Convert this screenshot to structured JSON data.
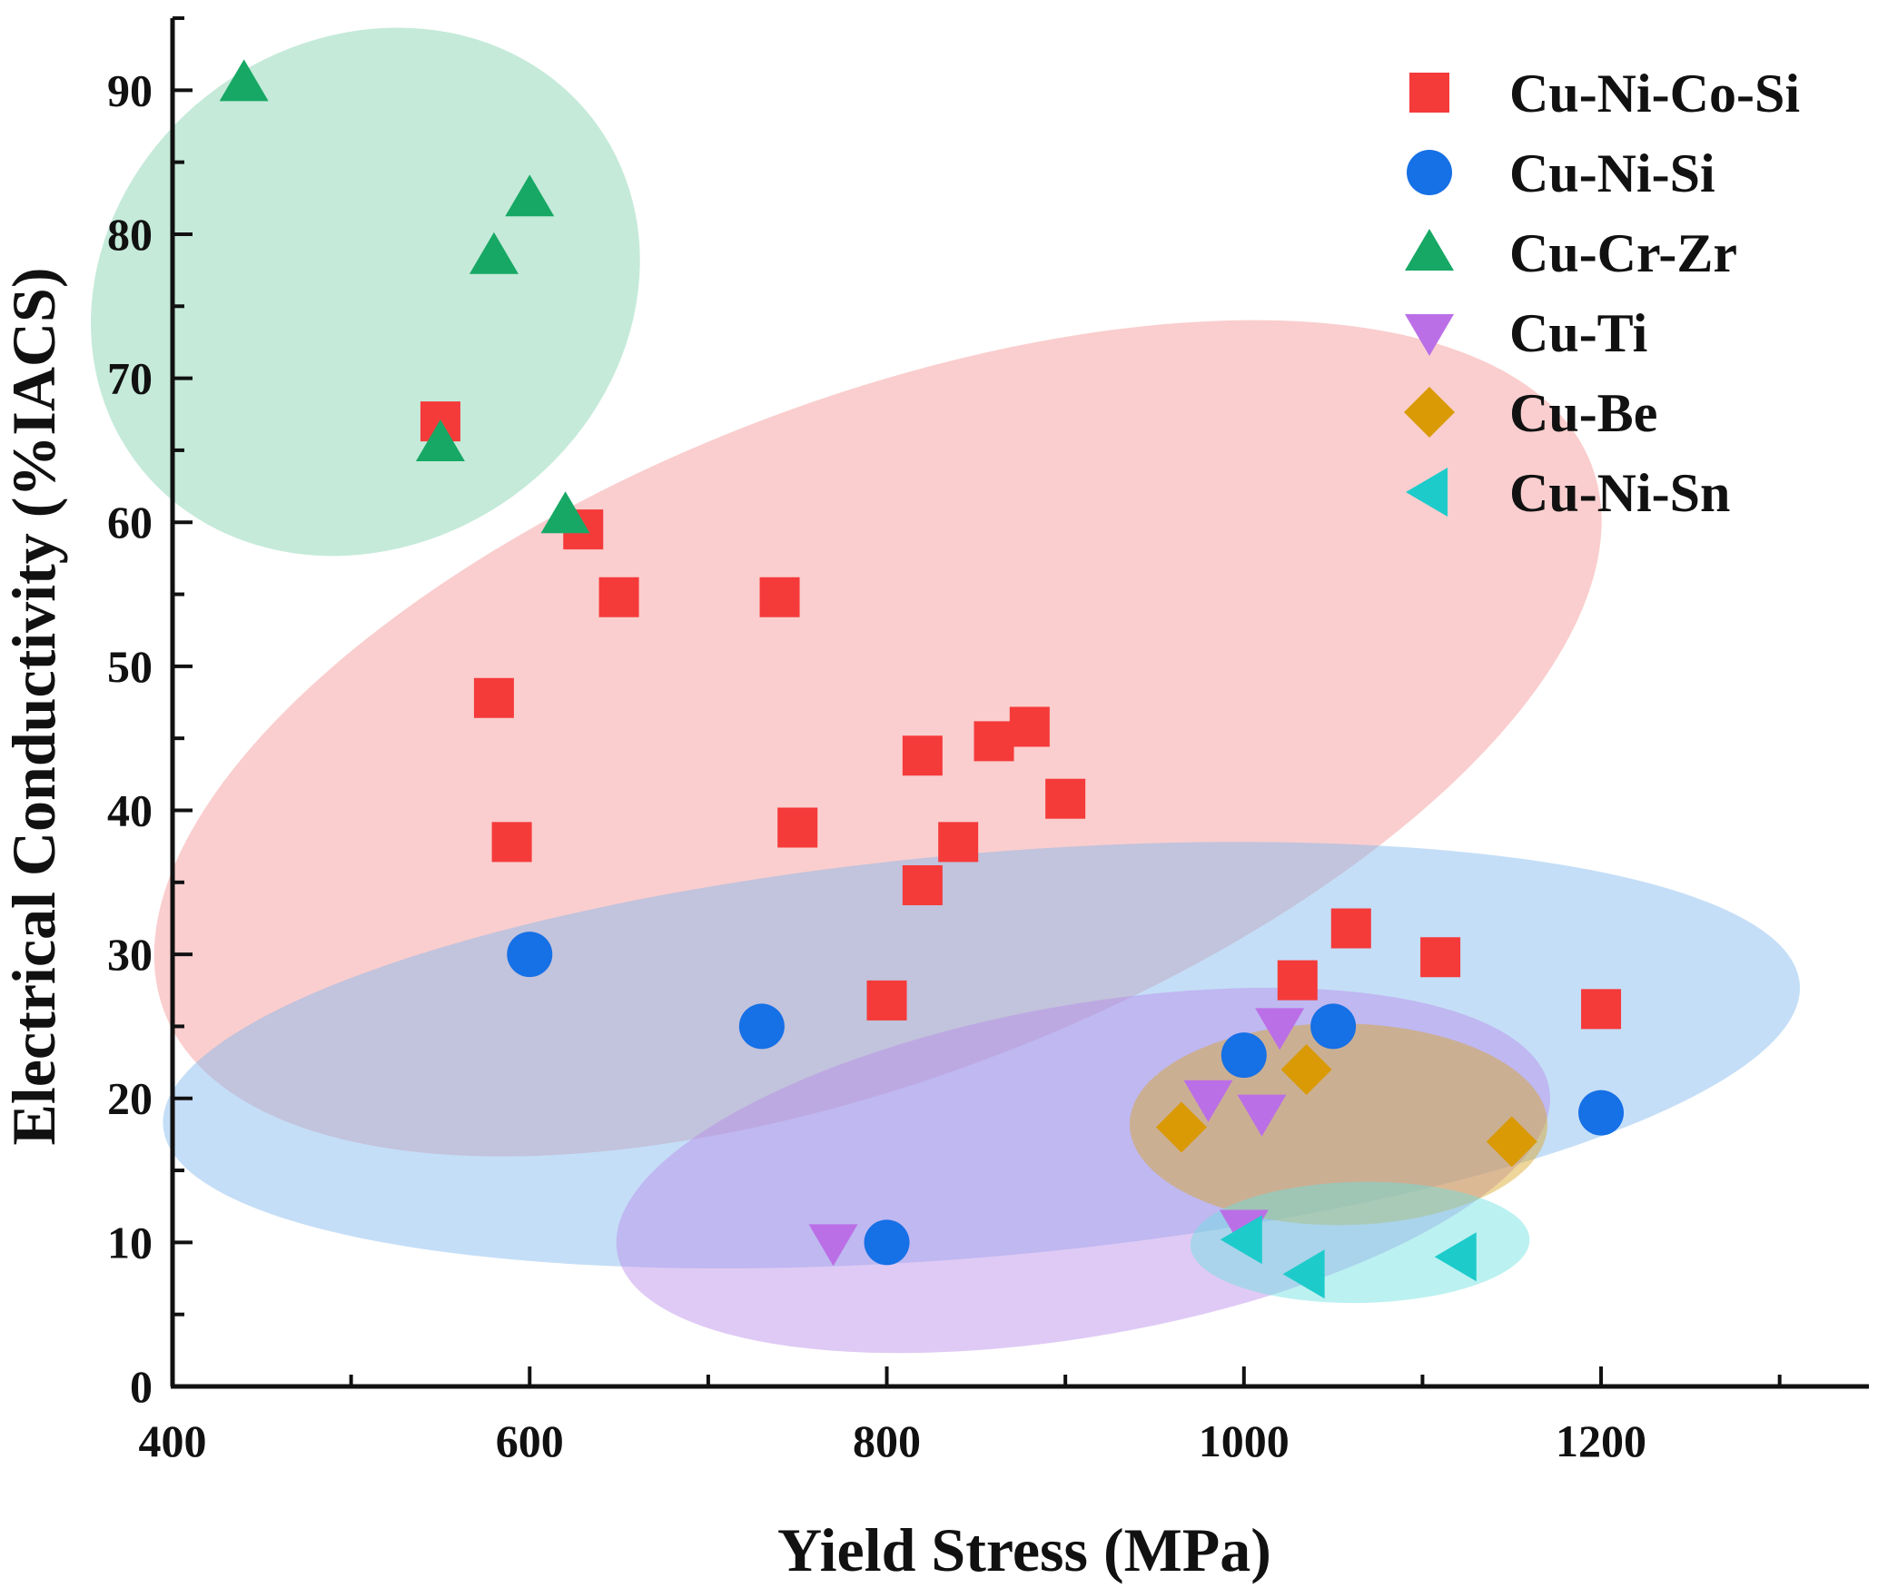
{
  "chart_data": {
    "type": "scatter",
    "title": "",
    "xlabel": "Yield Stress (MPa)",
    "ylabel": "Electrical Conductivity (%IACS)",
    "xlim": [
      400,
      1350
    ],
    "ylim": [
      0,
      95
    ],
    "xticks": [
      400,
      600,
      800,
      1000,
      1200
    ],
    "xtick_labels": [
      "400",
      "600",
      "800",
      "1000",
      "1200"
    ],
    "yticks": [
      0,
      10,
      20,
      30,
      40,
      50,
      60,
      70,
      80,
      90
    ],
    "ytick_labels": [
      "0",
      "10",
      "20",
      "30",
      "40",
      "50",
      "60",
      "70",
      "80",
      "90"
    ],
    "legend_position": "top-right",
    "series": [
      {
        "name": "Cu-Ni-Co-Si",
        "marker": "square",
        "color": "#f53a3a",
        "region_color": "#f59393",
        "region": {
          "cx": 795,
          "cy": 45,
          "rx": 428,
          "ry": 23.5,
          "angle": -21
        },
        "points": [
          [
            550,
            67
          ],
          [
            630,
            59.5
          ],
          [
            650,
            54.8
          ],
          [
            740,
            54.8
          ],
          [
            580,
            47.8
          ],
          [
            590,
            37.8
          ],
          [
            750,
            38.8
          ],
          [
            820,
            43.8
          ],
          [
            860,
            44.8
          ],
          [
            880,
            45.8
          ],
          [
            900,
            40.8
          ],
          [
            840,
            37.8
          ],
          [
            820,
            34.8
          ],
          [
            800,
            26.8
          ],
          [
            1030,
            28.2
          ],
          [
            1060,
            31.8
          ],
          [
            1110,
            29.8
          ],
          [
            1200,
            26.2
          ]
        ]
      },
      {
        "name": "Cu-Ni-Si",
        "marker": "circle",
        "color": "#1670e6",
        "region_color": "#7eb6ee",
        "region": {
          "cx": 853,
          "cy": 23,
          "rx": 460,
          "ry": 14,
          "angle": -5
        },
        "points": [
          [
            600,
            30
          ],
          [
            730,
            25
          ],
          [
            800,
            10
          ],
          [
            1000,
            23
          ],
          [
            1050,
            25
          ],
          [
            1200,
            19
          ]
        ]
      },
      {
        "name": "Cu-Cr-Zr",
        "marker": "triangle-up",
        "color": "#17a865",
        "region_color": "#7fd1ad",
        "region": {
          "cx": 508,
          "cy": 76,
          "rx": 160,
          "ry": 17.5,
          "angle": -36
        },
        "points": [
          [
            440,
            90.5
          ],
          [
            600,
            82.5
          ],
          [
            580,
            78.5
          ],
          [
            550,
            65.5
          ],
          [
            620,
            60.5
          ]
        ]
      },
      {
        "name": "Cu-Ti",
        "marker": "triangle-down",
        "color": "#bb6fe6",
        "region_color": "#b889e8",
        "region": {
          "cx": 910,
          "cy": 15,
          "rx": 265,
          "ry": 11.5,
          "angle": -10
        },
        "points": [
          [
            770,
            10
          ],
          [
            980,
            20
          ],
          [
            1010,
            19
          ],
          [
            1020,
            25
          ],
          [
            1000,
            11
          ]
        ]
      },
      {
        "name": "Cu-Be",
        "marker": "diamond",
        "color": "#d99a06",
        "region_color": "#d9a322",
        "region": {
          "cx": 1053,
          "cy": 18.2,
          "rx": 117,
          "ry": 7,
          "angle": 0
        },
        "points": [
          [
            965,
            18
          ],
          [
            1035,
            22
          ],
          [
            1150,
            17
          ]
        ]
      },
      {
        "name": "Cu-Ni-Sn",
        "marker": "triangle-left",
        "color": "#1ecbcb",
        "region_color": "#6ae0e0",
        "region": {
          "cx": 1065,
          "cy": 10,
          "rx": 95,
          "ry": 4.2,
          "angle": -1
        },
        "points": [
          [
            1000,
            10.2
          ],
          [
            1035,
            7.8
          ],
          [
            1120,
            9
          ]
        ]
      }
    ]
  }
}
